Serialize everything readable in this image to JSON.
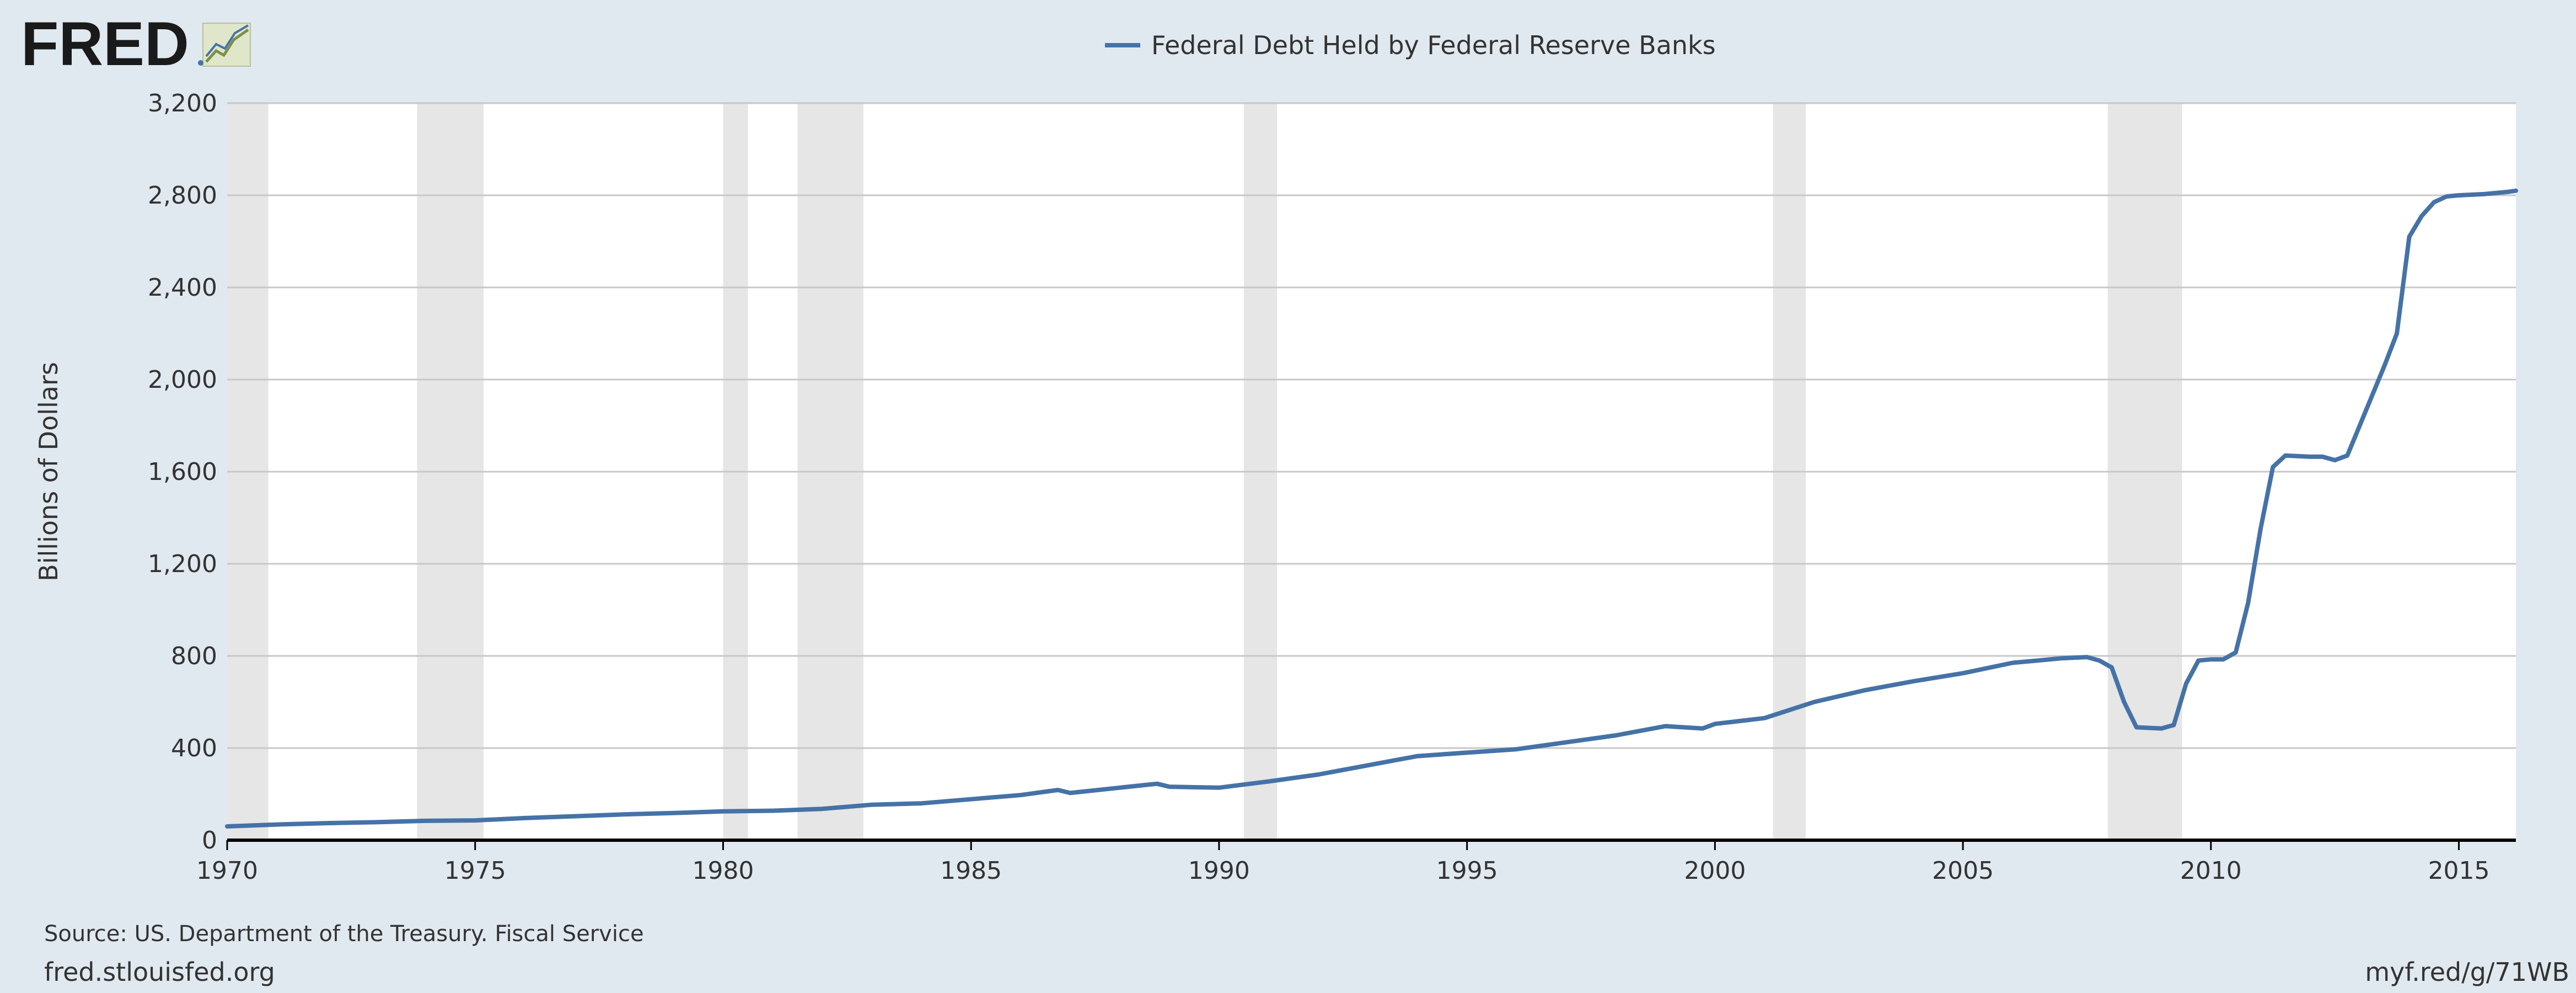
{
  "logo": {
    "text": "FRED",
    "icon": "fred-line-chart-icon"
  },
  "colors": {
    "background": "#e1e9f0",
    "plot_background": "#ffffff",
    "series": "#4572a7",
    "recession": "#e6e6e6",
    "grid": "#c8c8c8",
    "axis": "#000000"
  },
  "chart_data": {
    "type": "line",
    "title": "",
    "xlabel": "",
    "ylabel": "Billions of Dollars",
    "xlim": [
      1970,
      2016.15
    ],
    "ylim": [
      0,
      3200
    ],
    "yticks": [
      0,
      400,
      800,
      1200,
      1600,
      2000,
      2400,
      2800,
      3200
    ],
    "ytick_labels": [
      "0",
      "400",
      "800",
      "1,200",
      "1,600",
      "2,000",
      "2,400",
      "2,800",
      "3,200"
    ],
    "xticks": [
      1970,
      1975,
      1980,
      1985,
      1990,
      1995,
      2000,
      2005,
      2010,
      2015
    ],
    "xtick_labels": [
      "1970",
      "1975",
      "1980",
      "1985",
      "1990",
      "1995",
      "2000",
      "2005",
      "2010",
      "2015"
    ],
    "grid": true,
    "legend_position": "top-center",
    "recessions": [
      [
        1970.0,
        1970.83
      ],
      [
        1973.83,
        1975.17
      ],
      [
        1980.0,
        1980.5
      ],
      [
        1981.5,
        1982.83
      ],
      [
        1990.5,
        1991.17
      ],
      [
        2001.17,
        2001.83
      ],
      [
        2007.92,
        2009.42
      ]
    ],
    "series": [
      {
        "name": "Federal Debt Held by Federal Reserve Banks",
        "x": [
          1970.0,
          1971.0,
          1972.0,
          1973.0,
          1974.0,
          1975.0,
          1976.0,
          1977.0,
          1978.0,
          1979.0,
          1980.0,
          1981.0,
          1982.0,
          1983.0,
          1984.0,
          1985.0,
          1986.0,
          1986.75,
          1987.0,
          1988.0,
          1988.75,
          1989.0,
          1990.0,
          1991.0,
          1992.0,
          1993.0,
          1994.0,
          1995.0,
          1996.0,
          1997.0,
          1998.0,
          1999.0,
          1999.75,
          2000.0,
          2001.0,
          2002.0,
          2003.0,
          2004.0,
          2005.0,
          2006.0,
          2007.0,
          2007.5,
          2007.75,
          2008.0,
          2008.25,
          2008.5,
          2009.0,
          2009.25,
          2009.5,
          2009.75,
          2010.0,
          2010.25,
          2010.5,
          2010.75,
          2011.0,
          2011.25,
          2011.5,
          2012.0,
          2012.25,
          2012.5,
          2012.75,
          2013.0,
          2013.5,
          2013.75,
          2014.0,
          2014.25,
          2014.5,
          2014.75,
          2015.0,
          2015.5,
          2016.0,
          2016.15
        ],
        "y": [
          60,
          68,
          74,
          78,
          84,
          86,
          96,
          104,
          112,
          118,
          125,
          128,
          136,
          154,
          160,
          178,
          196,
          218,
          205,
          228,
          245,
          232,
          228,
          255,
          285,
          325,
          365,
          380,
          395,
          425,
          455,
          495,
          485,
          505,
          530,
          600,
          650,
          690,
          725,
          770,
          790,
          795,
          780,
          750,
          600,
          490,
          485,
          500,
          680,
          780,
          785,
          785,
          815,
          1030,
          1350,
          1620,
          1670,
          1665,
          1665,
          1650,
          1670,
          1800,
          2060,
          2200,
          2620,
          2710,
          2770,
          2795,
          2800,
          2805,
          2815,
          2820
        ]
      }
    ]
  },
  "footer": {
    "source": "Source: US. Department of the Treasury. Fiscal Service",
    "site": "fred.stlouisfed.org",
    "short_url": "myf.red/g/71WB"
  }
}
